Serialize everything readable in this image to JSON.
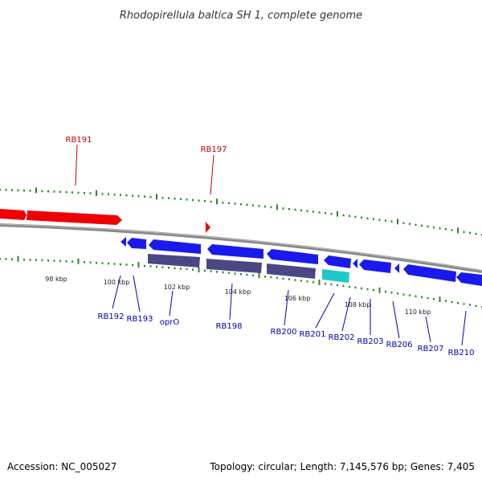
{
  "title": "Rhodopirellula baltica SH 1, complete genome",
  "footer": {
    "accession_label": "Accession: NC_005027",
    "summary": "Topology: circular; Length: 7,145,576 bp; Genes: 7,405"
  },
  "colors": {
    "forward_gene": "#ee0000",
    "reverse_gene": "#1a1aee",
    "rna_gene": "#1ec8c8",
    "cds_feature": "#4a4785",
    "backbone": "#888888",
    "tick": "#228b22",
    "forward_label": "#bb0000",
    "reverse_label": "#0000aa"
  },
  "position_labels": [
    "98 kbp",
    "100 kbp",
    "102 kbp",
    "104 kbp",
    "106 kbp",
    "108 kbp",
    "110 kbp"
  ],
  "forward_genes": [
    {
      "label": "RB191"
    },
    {
      "label": "RB197"
    }
  ],
  "reverse_genes": [
    {
      "label": "RB192"
    },
    {
      "label": "RB193"
    },
    {
      "label": "oprO"
    },
    {
      "label": "RB198"
    },
    {
      "label": "RB200"
    },
    {
      "label": "RB201"
    },
    {
      "label": "RB202"
    },
    {
      "label": "RB203"
    },
    {
      "label": "RB206"
    },
    {
      "label": "RB207"
    },
    {
      "label": "RB210"
    }
  ]
}
